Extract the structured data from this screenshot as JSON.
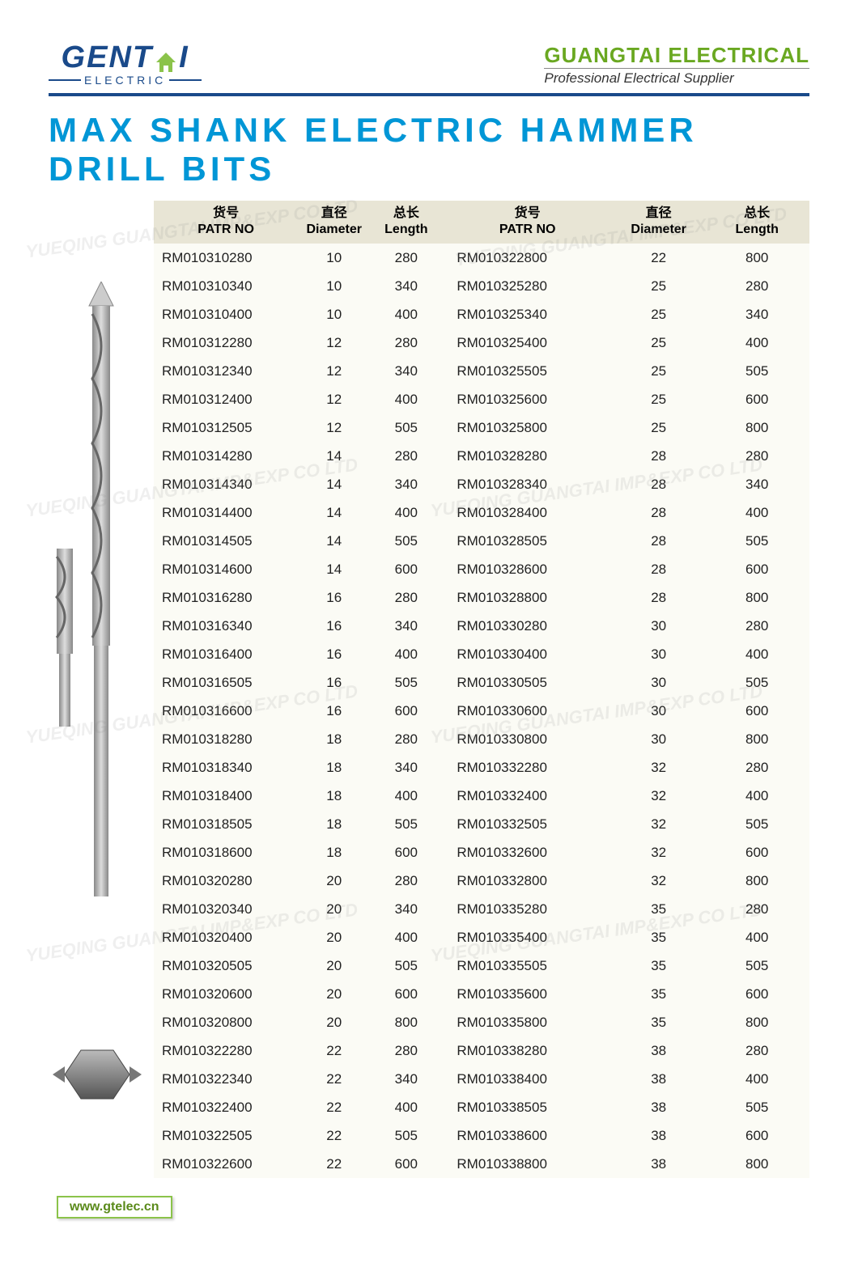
{
  "header": {
    "logo_main": "GENT",
    "logo_main2": "I",
    "logo_sub": "ELECTRIC",
    "company": "GUANGTAI ELECTRICAL",
    "tagline": "Professional Electrical Supplier"
  },
  "title": "MAX SHANK ELECTRIC HAMMER DRILL BITS",
  "table": {
    "headers": [
      {
        "cn": "货号",
        "en": "PATR NO"
      },
      {
        "cn": "直径",
        "en": "Diameter"
      },
      {
        "cn": "总长",
        "en": "Length"
      },
      {
        "cn": "货号",
        "en": "PATR NO"
      },
      {
        "cn": "直径",
        "en": "Diameter"
      },
      {
        "cn": "总长",
        "en": "Length"
      }
    ],
    "rows": [
      [
        "RM010310280",
        "10",
        "280",
        "RM010322800",
        "22",
        "800"
      ],
      [
        "RM010310340",
        "10",
        "340",
        "RM010325280",
        "25",
        "280"
      ],
      [
        "RM010310400",
        "10",
        "400",
        "RM010325340",
        "25",
        "340"
      ],
      [
        "RM010312280",
        "12",
        "280",
        "RM010325400",
        "25",
        "400"
      ],
      [
        "RM010312340",
        "12",
        "340",
        "RM010325505",
        "25",
        "505"
      ],
      [
        "RM010312400",
        "12",
        "400",
        "RM010325600",
        "25",
        "600"
      ],
      [
        "RM010312505",
        "12",
        "505",
        "RM010325800",
        "25",
        "800"
      ],
      [
        "RM010314280",
        "14",
        "280",
        "RM010328280",
        "28",
        "280"
      ],
      [
        "RM010314340",
        "14",
        "340",
        "RM010328340",
        "28",
        "340"
      ],
      [
        "RM010314400",
        "14",
        "400",
        "RM010328400",
        "28",
        "400"
      ],
      [
        "RM010314505",
        "14",
        "505",
        "RM010328505",
        "28",
        "505"
      ],
      [
        "RM010314600",
        "14",
        "600",
        "RM010328600",
        "28",
        "600"
      ],
      [
        "RM010316280",
        "16",
        "280",
        "RM010328800",
        "28",
        "800"
      ],
      [
        "RM010316340",
        "16",
        "340",
        "RM010330280",
        "30",
        "280"
      ],
      [
        "RM010316400",
        "16",
        "400",
        "RM010330400",
        "30",
        "400"
      ],
      [
        "RM010316505",
        "16",
        "505",
        "RM010330505",
        "30",
        "505"
      ],
      [
        "RM010316600",
        "16",
        "600",
        "RM010330600",
        "30",
        "600"
      ],
      [
        "RM010318280",
        "18",
        "280",
        "RM010330800",
        "30",
        "800"
      ],
      [
        "RM010318340",
        "18",
        "340",
        "RM010332280",
        "32",
        "280"
      ],
      [
        "RM010318400",
        "18",
        "400",
        "RM010332400",
        "32",
        "400"
      ],
      [
        "RM010318505",
        "18",
        "505",
        "RM010332505",
        "32",
        "505"
      ],
      [
        "RM010318600",
        "18",
        "600",
        "RM010332600",
        "32",
        "600"
      ],
      [
        "RM010320280",
        "20",
        "280",
        "RM010332800",
        "32",
        "800"
      ],
      [
        "RM010320340",
        "20",
        "340",
        "RM010335280",
        "35",
        "280"
      ],
      [
        "RM010320400",
        "20",
        "400",
        "RM010335400",
        "35",
        "400"
      ],
      [
        "RM010320505",
        "20",
        "505",
        "RM010335505",
        "35",
        "505"
      ],
      [
        "RM010320600",
        "20",
        "600",
        "RM010335600",
        "35",
        "600"
      ],
      [
        "RM010320800",
        "20",
        "800",
        "RM010335800",
        "35",
        "800"
      ],
      [
        "RM010322280",
        "22",
        "280",
        "RM010338280",
        "38",
        "280"
      ],
      [
        "RM010322340",
        "22",
        "340",
        "RM010338400",
        "38",
        "400"
      ],
      [
        "RM010322400",
        "22",
        "400",
        "RM010338505",
        "38",
        "505"
      ],
      [
        "RM010322505",
        "22",
        "505",
        "RM010338600",
        "38",
        "600"
      ],
      [
        "RM010322600",
        "22",
        "600",
        "RM010338800",
        "38",
        "800"
      ]
    ]
  },
  "footer": {
    "url": "www.gtelec.cn"
  },
  "watermark_text": "YUEQING GUANGTAI IMP&EXP CO LTD",
  "colors": {
    "brand_blue": "#1a4a8a",
    "title_cyan": "#0096d6",
    "brand_green": "#6aa821",
    "header_bg": "#e8e5d5",
    "table_bg": "#fbfbf5"
  }
}
